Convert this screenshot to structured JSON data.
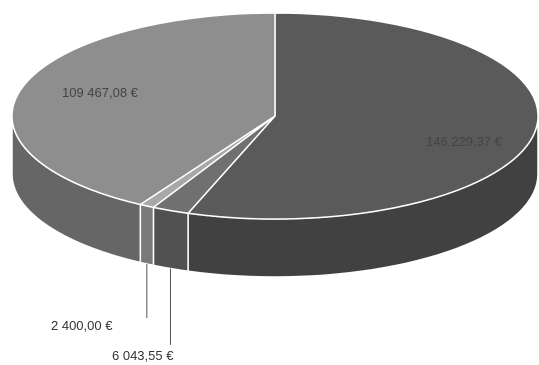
{
  "chart_data": {
    "type": "pie",
    "style": "3d",
    "slices": [
      {
        "label": "146 229,37 €",
        "value": 146229.37,
        "color": "#5a5a5a"
      },
      {
        "label": "6 043,55 €",
        "value": 6043.55,
        "color": "#707070"
      },
      {
        "label": "2 400,00 €",
        "value": 2400.0,
        "color": "#a8a8a8"
      },
      {
        "label": "109 467,08 €",
        "value": 109467.08,
        "color": "#8e8e8e"
      }
    ]
  }
}
